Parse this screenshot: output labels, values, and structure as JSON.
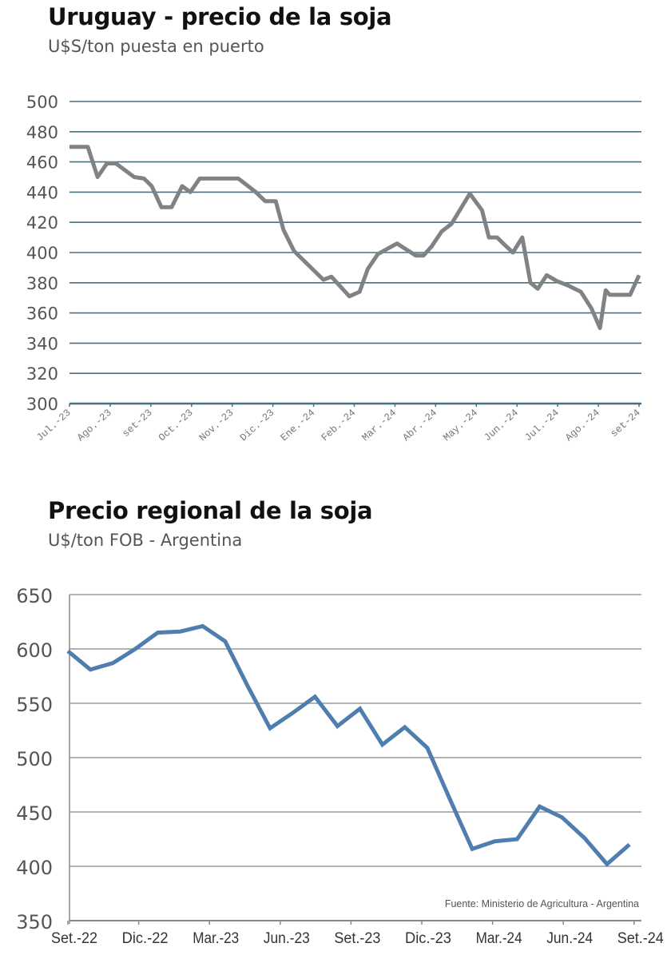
{
  "chart_data": [
    {
      "type": "line",
      "title": "Uruguay - precio de la soja",
      "subtitle": "U$S/ton puesta en puerto",
      "xlabel": "",
      "ylabel": "",
      "ylim": [
        300,
        500
      ],
      "yticks": [
        500,
        480,
        460,
        440,
        420,
        400,
        380,
        360,
        340,
        320,
        300
      ],
      "grid": true,
      "line_color": "#808284",
      "grid_color": "#4b6f82",
      "x_unit": "months since Jul.-23",
      "xlim": [
        0,
        14
      ],
      "xtick_labels": [
        "Jul.-23",
        "Ago.-23",
        "set-23",
        "Oct.-23",
        "Nov.-23",
        "Dic.-23",
        "Ene.-24",
        "Feb.-24",
        "Mar.-24",
        "Abr.-24",
        "May.-24",
        "Jun.-24",
        "Jul.-24",
        "Ago.-24",
        "set-24"
      ],
      "series": [
        {
          "name": "Uruguay",
          "x": [
            0.0,
            0.45,
            0.69,
            0.92,
            1.14,
            1.59,
            1.83,
            2.02,
            2.26,
            2.51,
            2.77,
            2.97,
            3.2,
            4.15,
            4.58,
            4.81,
            5.07,
            5.26,
            5.52,
            6.24,
            6.44,
            6.54,
            6.88,
            7.13,
            7.33,
            7.58,
            8.05,
            8.51,
            8.7,
            8.9,
            9.15,
            9.39,
            9.84,
            10.14,
            10.31,
            10.51,
            10.7,
            10.9,
            11.13,
            11.33,
            11.51,
            11.73,
            11.99,
            12.27,
            12.57,
            12.83,
            13.04,
            13.18,
            13.28,
            13.5,
            13.78,
            14.0,
            14.0
          ],
          "values": [
            470,
            470,
            450,
            459,
            459,
            450,
            449,
            444,
            430,
            430,
            444,
            440,
            449,
            449,
            440,
            434,
            434,
            415,
            401,
            382,
            384,
            381,
            371,
            374,
            389,
            399,
            406,
            398,
            398,
            404,
            414,
            419,
            439,
            428,
            410,
            410,
            405,
            400,
            410,
            380,
            376,
            385,
            381,
            378,
            374,
            363,
            350,
            375,
            372,
            372,
            372,
            385,
            385
          ]
        }
      ]
    },
    {
      "type": "line",
      "title": "Precio regional de la soja",
      "subtitle": "U$/ton FOB - Argentina",
      "xlabel": "",
      "ylabel": "",
      "ylim": [
        350,
        650
      ],
      "yticks": [
        650,
        600,
        550,
        500,
        450,
        400,
        350
      ],
      "grid": true,
      "line_color": "#4f7eae",
      "grid_color": "#9a9a9a",
      "xtick_labels": [
        "Set.-22",
        "Dic.-22",
        "Mar.-23",
        "Jun.-23",
        "Set.-23",
        "Dic.-23",
        "Mar.-24",
        "Jun.-24",
        "Set.-24"
      ],
      "annotation": "Fuente: Ministerio de Agricultura - Argentina",
      "series": [
        {
          "name": "Argentina FOB",
          "values": [
            598,
            581,
            587,
            600,
            615,
            616,
            621,
            607,
            566,
            527,
            541,
            556,
            529,
            545,
            512,
            528,
            509,
            462,
            416,
            423,
            425,
            455,
            445,
            426,
            402,
            420
          ]
        }
      ]
    }
  ]
}
